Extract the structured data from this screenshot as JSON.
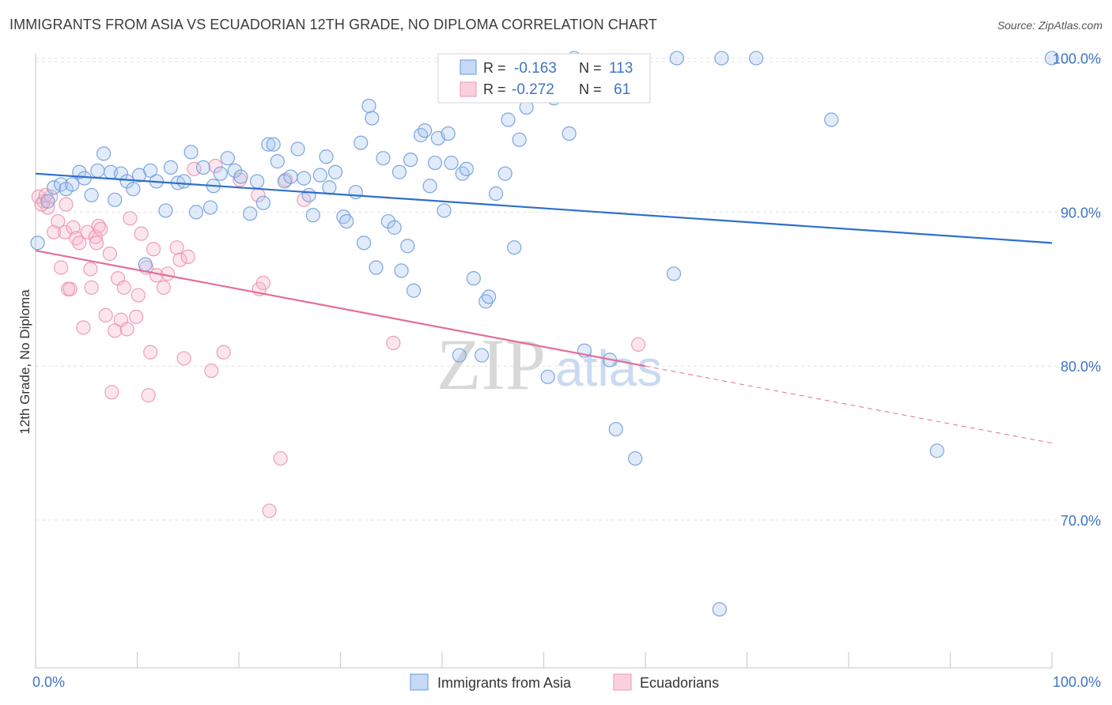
{
  "title": "IMMIGRANTS FROM ASIA VS ECUADORIAN 12TH GRADE, NO DIPLOMA CORRELATION CHART",
  "source": "Source: ZipAtlas.com",
  "watermark": {
    "part1": "ZIP",
    "part2": "atlas"
  },
  "legend_box": {
    "rows": [
      {
        "r_label": "R =",
        "r_value": "-0.163",
        "n_label": "N =",
        "n_value": "113"
      },
      {
        "r_label": "R =",
        "r_value": "-0.272",
        "n_label": "N =",
        "n_value": "61"
      }
    ]
  },
  "bottom_legend": [
    {
      "label": "Immigrants from Asia"
    },
    {
      "label": "Ecuadorians"
    }
  ],
  "chart_data": {
    "type": "scatter",
    "title": "IMMIGRANTS FROM ASIA VS ECUADORIAN 12TH GRADE, NO DIPLOMA CORRELATION CHART",
    "xlabel": "",
    "ylabel": "12th Grade, No Diploma",
    "xlim": [
      0,
      100
    ],
    "ylim": [
      60.4,
      100.8
    ],
    "x_tick_labels": [
      "0.0%",
      "100.0%"
    ],
    "y_ticks": [
      70,
      80,
      90,
      100
    ],
    "y_tick_labels": [
      "70.0%",
      "80.0%",
      "90.0%",
      "100.0%"
    ],
    "grid": true,
    "legend_position": "bottom",
    "colors": {
      "asia": "#7ba7e3",
      "ecuador": "#f1a3bd",
      "asia_line": "#2f6fcb",
      "ecuador_line": "#e46e98",
      "tick_text": "#3f74c4"
    },
    "series": [
      {
        "name": "Immigrants from Asia",
        "r": -0.163,
        "n": 113,
        "trend": {
          "x": [
            0,
            100
          ],
          "y": [
            92.5,
            88.0
          ]
        },
        "points": [
          [
            0.2,
            88.0
          ],
          [
            1.2,
            90.7
          ],
          [
            1.8,
            91.6
          ],
          [
            2.5,
            91.8
          ],
          [
            3.0,
            91.5
          ],
          [
            3.6,
            91.8
          ],
          [
            4.3,
            92.6
          ],
          [
            4.8,
            92.2
          ],
          [
            5.5,
            91.1
          ],
          [
            6.1,
            92.7
          ],
          [
            6.7,
            93.8
          ],
          [
            7.4,
            92.6
          ],
          [
            7.8,
            90.8
          ],
          [
            8.4,
            92.5
          ],
          [
            9.0,
            92.0
          ],
          [
            9.6,
            91.5
          ],
          [
            10.2,
            92.4
          ],
          [
            10.8,
            86.6
          ],
          [
            11.3,
            92.7
          ],
          [
            11.9,
            92.0
          ],
          [
            12.8,
            90.1
          ],
          [
            13.3,
            92.9
          ],
          [
            14.0,
            91.9
          ],
          [
            14.6,
            92.0
          ],
          [
            15.3,
            93.9
          ],
          [
            15.8,
            90.0
          ],
          [
            16.5,
            92.9
          ],
          [
            17.2,
            90.3
          ],
          [
            17.5,
            91.7
          ],
          [
            18.2,
            92.5
          ],
          [
            18.9,
            93.5
          ],
          [
            19.6,
            92.7
          ],
          [
            20.2,
            92.3
          ],
          [
            21.1,
            89.9
          ],
          [
            21.8,
            92.0
          ],
          [
            22.4,
            90.6
          ],
          [
            22.9,
            94.4
          ],
          [
            23.4,
            94.4
          ],
          [
            23.8,
            93.3
          ],
          [
            24.5,
            92.0
          ],
          [
            25.1,
            92.3
          ],
          [
            25.8,
            94.1
          ],
          [
            26.4,
            92.2
          ],
          [
            26.9,
            91.1
          ],
          [
            27.3,
            89.8
          ],
          [
            28.0,
            92.4
          ],
          [
            28.6,
            93.6
          ],
          [
            28.9,
            91.6
          ],
          [
            29.5,
            92.6
          ],
          [
            30.3,
            89.7
          ],
          [
            30.6,
            89.4
          ],
          [
            31.5,
            91.3
          ],
          [
            32.0,
            94.5
          ],
          [
            32.3,
            88.0
          ],
          [
            32.8,
            96.9
          ],
          [
            33.1,
            96.1
          ],
          [
            33.5,
            86.4
          ],
          [
            34.2,
            93.5
          ],
          [
            34.7,
            89.4
          ],
          [
            35.3,
            89.0
          ],
          [
            35.8,
            92.6
          ],
          [
            36.0,
            86.2
          ],
          [
            36.6,
            87.8
          ],
          [
            36.9,
            93.4
          ],
          [
            37.2,
            84.9
          ],
          [
            37.9,
            95.0
          ],
          [
            38.3,
            95.3
          ],
          [
            38.8,
            91.7
          ],
          [
            39.3,
            93.2
          ],
          [
            39.6,
            94.8
          ],
          [
            40.2,
            90.1
          ],
          [
            40.6,
            95.1
          ],
          [
            40.9,
            93.2
          ],
          [
            41.7,
            80.7
          ],
          [
            42.0,
            92.5
          ],
          [
            42.4,
            92.8
          ],
          [
            43.1,
            85.7
          ],
          [
            43.9,
            80.7
          ],
          [
            44.3,
            84.2
          ],
          [
            44.6,
            84.5
          ],
          [
            45.3,
            91.2
          ],
          [
            46.2,
            92.5
          ],
          [
            46.5,
            96.0
          ],
          [
            47.1,
            87.7
          ],
          [
            47.6,
            94.7
          ],
          [
            48.3,
            96.8
          ],
          [
            50.4,
            79.3
          ],
          [
            51.0,
            97.4
          ],
          [
            52.5,
            95.1
          ],
          [
            53.0,
            100.0
          ],
          [
            54.0,
            81.0
          ],
          [
            56.5,
            80.4
          ],
          [
            57.1,
            75.9
          ],
          [
            59.0,
            74.0
          ],
          [
            62.8,
            86.0
          ],
          [
            63.1,
            100.0
          ],
          [
            67.3,
            64.2
          ],
          [
            67.5,
            100.0
          ],
          [
            70.9,
            100.0
          ],
          [
            78.3,
            96.0
          ],
          [
            88.7,
            74.5
          ],
          [
            100.0,
            100.0
          ]
        ]
      },
      {
        "name": "Ecuadorians",
        "r": -0.272,
        "n": 61,
        "trend": {
          "x": [
            0,
            60
          ],
          "y": [
            87.5,
            80.0
          ]
        },
        "trend_dashed": {
          "x": [
            60,
            100
          ],
          "y": [
            80.0,
            75.0
          ]
        },
        "points": [
          [
            0.3,
            91.0
          ],
          [
            0.8,
            90.7
          ],
          [
            1.2,
            90.3
          ],
          [
            1.5,
            91.0
          ],
          [
            1.8,
            88.7
          ],
          [
            2.2,
            89.4
          ],
          [
            2.5,
            86.4
          ],
          [
            2.9,
            88.7
          ],
          [
            3.2,
            85.0
          ],
          [
            3.4,
            85.0
          ],
          [
            3.7,
            89.0
          ],
          [
            4.0,
            88.3
          ],
          [
            4.3,
            88.0
          ],
          [
            4.7,
            82.5
          ],
          [
            5.1,
            88.7
          ],
          [
            5.4,
            86.3
          ],
          [
            5.5,
            85.1
          ],
          [
            5.9,
            88.4
          ],
          [
            6.2,
            89.1
          ],
          [
            6.4,
            88.9
          ],
          [
            6.9,
            83.3
          ],
          [
            7.3,
            87.3
          ],
          [
            7.5,
            78.3
          ],
          [
            7.8,
            82.3
          ],
          [
            8.1,
            85.7
          ],
          [
            8.4,
            83.0
          ],
          [
            8.7,
            85.1
          ],
          [
            9.0,
            82.4
          ],
          [
            9.3,
            89.6
          ],
          [
            9.9,
            83.2
          ],
          [
            10.1,
            84.6
          ],
          [
            10.4,
            88.6
          ],
          [
            10.9,
            86.4
          ],
          [
            11.1,
            78.1
          ],
          [
            11.3,
            80.9
          ],
          [
            11.6,
            87.6
          ],
          [
            11.9,
            85.9
          ],
          [
            12.6,
            85.1
          ],
          [
            13.9,
            87.7
          ],
          [
            14.2,
            86.9
          ],
          [
            14.6,
            80.5
          ],
          [
            15.0,
            87.1
          ],
          [
            15.6,
            92.8
          ],
          [
            17.3,
            79.7
          ],
          [
            17.7,
            93.0
          ],
          [
            18.5,
            80.9
          ],
          [
            20.1,
            92.1
          ],
          [
            21.9,
            91.1
          ],
          [
            22.0,
            85.0
          ],
          [
            22.4,
            85.4
          ],
          [
            23.0,
            70.6
          ],
          [
            24.1,
            74.0
          ],
          [
            24.6,
            92.1
          ],
          [
            26.4,
            90.8
          ],
          [
            35.2,
            81.5
          ],
          [
            59.3,
            81.4
          ],
          [
            0.6,
            90.5
          ],
          [
            1.0,
            91.1
          ],
          [
            13.0,
            86.0
          ],
          [
            6.0,
            88.0
          ],
          [
            3.0,
            90.5
          ]
        ]
      }
    ]
  }
}
